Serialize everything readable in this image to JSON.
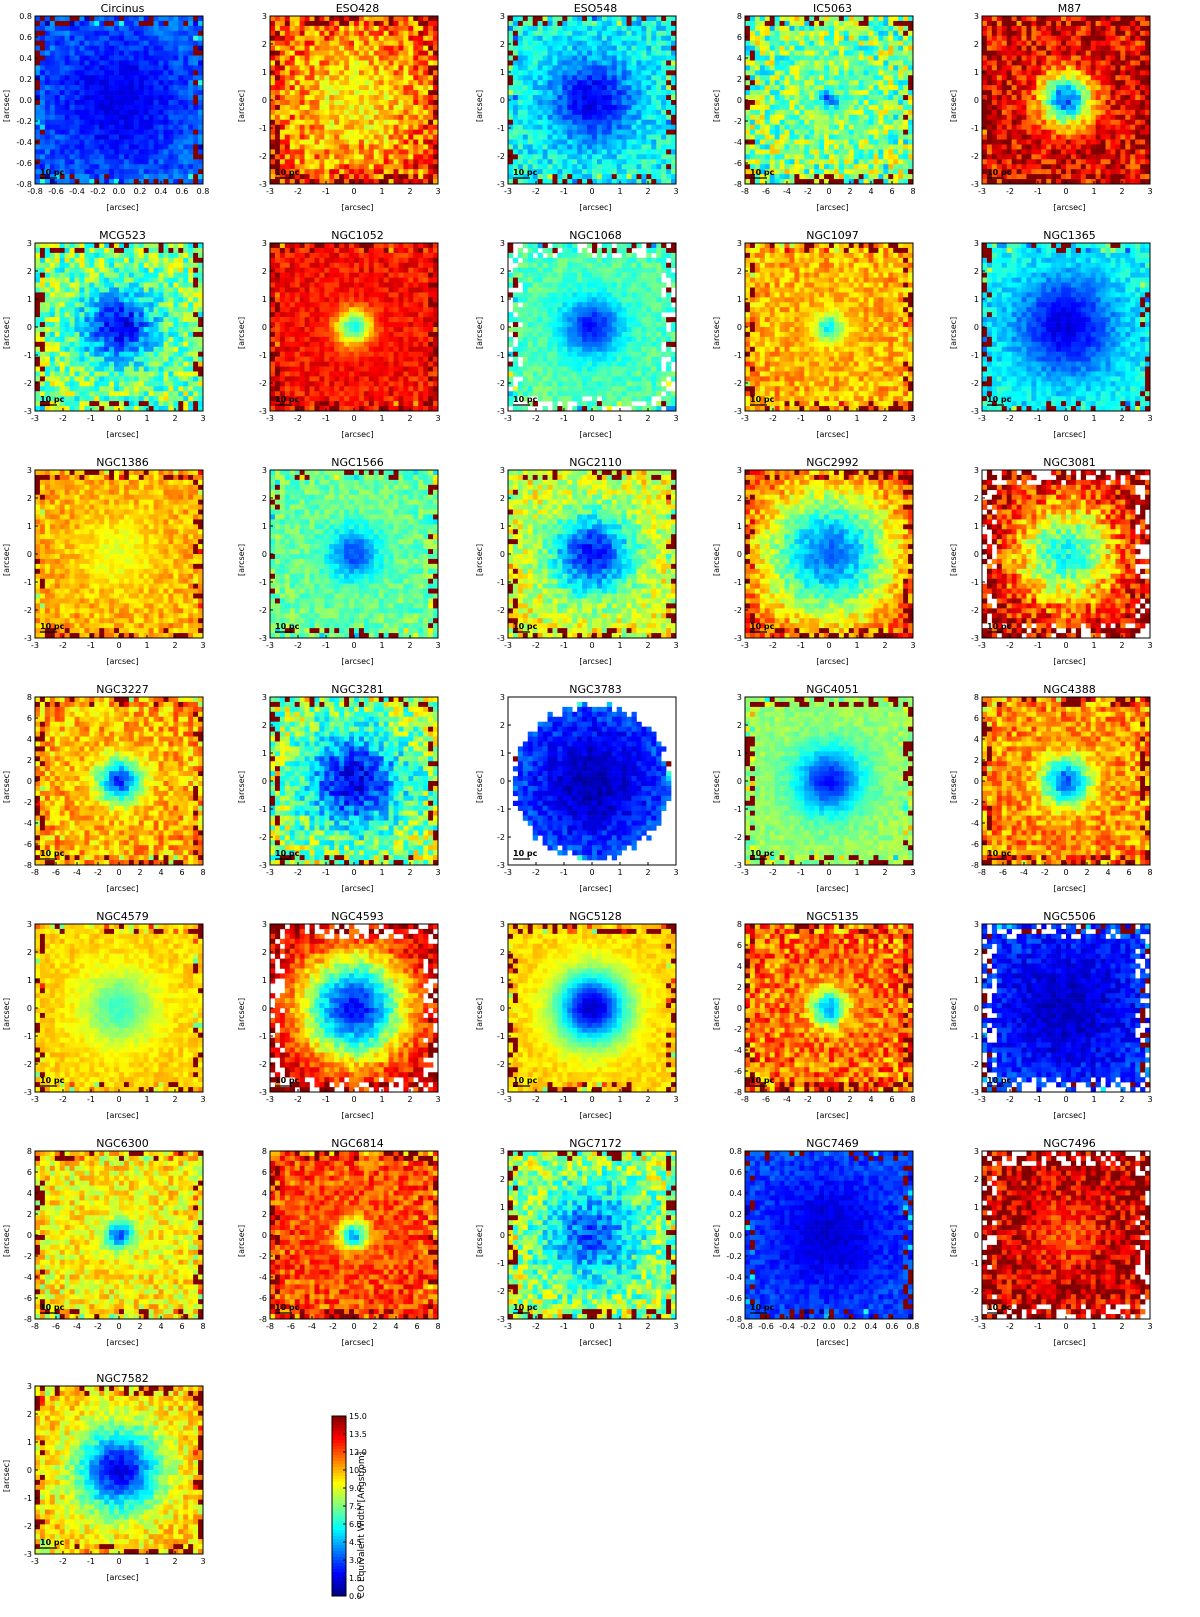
{
  "chart_data": {
    "type": "heatmap",
    "description_colormap": "jet",
    "colorbar": {
      "label": "CO Equivalent Width [Angstrom]",
      "ticks": [
        "15.0",
        "13.5",
        "12.0",
        "10.5",
        "9.0",
        "7.5",
        "6.0",
        "4.5",
        "3.0",
        "1.5",
        "0.0"
      ],
      "vmin": 0.0,
      "vmax": 15.0
    },
    "axis_unit_label": "[arcsec]",
    "scalebar_label": "10 pc",
    "panels": [
      {
        "name": "Circinus",
        "range": 0.8,
        "bg": 3.5,
        "center": 1.5,
        "radius": 0.55,
        "noise": 1.0,
        "mask": "none",
        "xticks": [
          "-0.8",
          "-0.6",
          "-0.4",
          "-0.2",
          "0.0",
          "0.2",
          "0.4",
          "0.6",
          "0.8"
        ],
        "yticks": [
          "0.8",
          "0.6",
          "0.4",
          "0.2",
          "0.0",
          "-0.2",
          "-0.4",
          "-0.6",
          "-0.8"
        ]
      },
      {
        "name": "ESO428",
        "range": 3,
        "bg": 12.5,
        "center": 9.5,
        "radius": 0.6,
        "noise": 2.5,
        "mask": "square",
        "xticks": [
          "-3",
          "-2",
          "-1",
          "0",
          "1",
          "2",
          "3"
        ],
        "yticks": [
          "3",
          "2",
          "1",
          "0",
          "-1",
          "-2",
          "-3"
        ]
      },
      {
        "name": "ESO548",
        "range": 3,
        "bg": 5.8,
        "center": 1.5,
        "radius": 0.35,
        "noise": 1.5,
        "mask": "square",
        "xticks": [
          "-3",
          "-2",
          "-1",
          "0",
          "1",
          "2",
          "3"
        ],
        "yticks": [
          "3",
          "2",
          "1",
          "0",
          "-1",
          "-2",
          "-3"
        ]
      },
      {
        "name": "IC5063",
        "range": 8,
        "bg": 7.5,
        "center": 3.0,
        "radius": 0.08,
        "noise": 3.0,
        "mask": "square",
        "xticks": [
          "-8",
          "-6",
          "-4",
          "-2",
          "0",
          "2",
          "4",
          "6",
          "8"
        ],
        "yticks": [
          "8",
          "6",
          "4",
          "2",
          "0",
          "-2",
          "-4",
          "-6",
          "-8"
        ]
      },
      {
        "name": "M87",
        "range": 3,
        "bg": 13.5,
        "center": 3.0,
        "radius": 0.22,
        "noise": 2.5,
        "mask": "square",
        "xticks": [
          "-3",
          "-2",
          "-1",
          "0",
          "1",
          "2",
          "3"
        ],
        "yticks": [
          "3",
          "2",
          "1",
          "0",
          "-1",
          "-2",
          "-3"
        ]
      },
      {
        "name": "MCG523",
        "range": 3,
        "bg": 7.5,
        "center": 1.5,
        "radius": 0.3,
        "noise": 2.5,
        "mask": "square",
        "xticks": [
          "-3",
          "-2",
          "-1",
          "0",
          "1",
          "2",
          "3"
        ],
        "yticks": [
          "3",
          "2",
          "1",
          "0",
          "-1",
          "-2",
          "-3"
        ]
      },
      {
        "name": "NGC1052",
        "range": 3,
        "bg": 13.0,
        "center": 6.0,
        "radius": 0.15,
        "noise": 1.2,
        "mask": "square",
        "xticks": [
          "-3",
          "-2",
          "-1",
          "0",
          "1",
          "2",
          "3"
        ],
        "yticks": [
          "3",
          "2",
          "1",
          "0",
          "-1",
          "-2",
          "-3"
        ]
      },
      {
        "name": "NGC1068",
        "range": 3,
        "bg": 6.8,
        "center": 2.0,
        "radius": 0.25,
        "noise": 1.0,
        "mask": "ragged",
        "xticks": [
          "-3",
          "-2",
          "-1",
          "0",
          "1",
          "2",
          "3"
        ],
        "yticks": [
          "3",
          "2",
          "1",
          "0",
          "-1",
          "-2",
          "-3"
        ]
      },
      {
        "name": "NGC1097",
        "range": 3,
        "bg": 10.5,
        "center": 5.5,
        "radius": 0.12,
        "noise": 1.5,
        "mask": "square",
        "xticks": [
          "-3",
          "-2",
          "-1",
          "0",
          "1",
          "2",
          "3"
        ],
        "yticks": [
          "3",
          "2",
          "1",
          "0",
          "-1",
          "-2",
          "-3"
        ]
      },
      {
        "name": "NGC1365",
        "range": 3,
        "bg": 6.0,
        "center": 1.5,
        "radius": 0.45,
        "noise": 1.0,
        "mask": "square",
        "xticks": [
          "-3",
          "-2",
          "-1",
          "0",
          "1",
          "2",
          "3"
        ],
        "yticks": [
          "3",
          "2",
          "1",
          "0",
          "-1",
          "-2",
          "-3"
        ]
      },
      {
        "name": "NGC1386",
        "range": 3,
        "bg": 10.5,
        "center": 9.0,
        "radius": 0.3,
        "noise": 1.2,
        "mask": "square",
        "xticks": [
          "-3",
          "-2",
          "-1",
          "0",
          "1",
          "2",
          "3"
        ],
        "yticks": [
          "3",
          "2",
          "1",
          "0",
          "-1",
          "-2",
          "-3"
        ]
      },
      {
        "name": "NGC1566",
        "range": 3,
        "bg": 7.2,
        "center": 3.0,
        "radius": 0.22,
        "noise": 1.2,
        "mask": "square",
        "xticks": [
          "-3",
          "-2",
          "-1",
          "0",
          "1",
          "2",
          "3"
        ],
        "yticks": [
          "3",
          "2",
          "1",
          "0",
          "-1",
          "-2",
          "-3"
        ]
      },
      {
        "name": "NGC2110",
        "range": 3,
        "bg": 9.0,
        "center": 2.0,
        "radius": 0.35,
        "noise": 1.8,
        "mask": "square",
        "xticks": [
          "-3",
          "-2",
          "-1",
          "0",
          "1",
          "2",
          "3"
        ],
        "yticks": [
          "3",
          "2",
          "1",
          "0",
          "-1",
          "-2",
          "-3"
        ]
      },
      {
        "name": "NGC2992",
        "range": 3,
        "bg": 12.5,
        "center": 3.5,
        "radius": 0.55,
        "noise": 1.5,
        "mask": "square",
        "xticks": [
          "-3",
          "-2",
          "-1",
          "0",
          "1",
          "2",
          "3"
        ],
        "yticks": [
          "3",
          "2",
          "1",
          "0",
          "-1",
          "-2",
          "-3"
        ]
      },
      {
        "name": "NGC3081",
        "range": 3,
        "bg": 14.0,
        "center": 6.0,
        "radius": 0.45,
        "noise": 2.5,
        "mask": "ragged",
        "xticks": [
          "-3",
          "-2",
          "-1",
          "0",
          "1",
          "2",
          "3"
        ],
        "yticks": [
          "3",
          "2",
          "1",
          "0",
          "-1",
          "-2",
          "-3"
        ]
      },
      {
        "name": "NGC3227",
        "range": 8,
        "bg": 10.5,
        "center": 2.5,
        "radius": 0.18,
        "noise": 1.8,
        "mask": "square",
        "xticks": [
          "-8",
          "-6",
          "-4",
          "-2",
          "0",
          "2",
          "4",
          "6",
          "8"
        ],
        "yticks": [
          "8",
          "6",
          "4",
          "2",
          "0",
          "-2",
          "-4",
          "-6",
          "-8"
        ]
      },
      {
        "name": "NGC3281",
        "range": 3,
        "bg": 8.0,
        "center": 1.5,
        "radius": 0.4,
        "noise": 2.5,
        "mask": "square",
        "xticks": [
          "-3",
          "-2",
          "-1",
          "0",
          "1",
          "2",
          "3"
        ],
        "yticks": [
          "3",
          "2",
          "1",
          "0",
          "-1",
          "-2",
          "-3"
        ]
      },
      {
        "name": "NGC3783",
        "range": 3,
        "bg": 4.0,
        "center": 0.8,
        "radius": 0.6,
        "noise": 1.2,
        "mask": "round",
        "xticks": [
          "-3",
          "-2",
          "-1",
          "0",
          "1",
          "2",
          "3"
        ],
        "yticks": [
          "3",
          "2",
          "1",
          "0",
          "-1",
          "-2",
          "-3"
        ]
      },
      {
        "name": "NGC4051",
        "range": 3,
        "bg": 7.8,
        "center": 2.0,
        "radius": 0.28,
        "noise": 0.8,
        "mask": "square",
        "xticks": [
          "-3",
          "-2",
          "-1",
          "0",
          "1",
          "2",
          "3"
        ],
        "yticks": [
          "3",
          "2",
          "1",
          "0",
          "-1",
          "-2",
          "-3"
        ]
      },
      {
        "name": "NGC4388",
        "range": 8,
        "bg": 11.0,
        "center": 3.0,
        "radius": 0.2,
        "noise": 1.8,
        "mask": "square",
        "xticks": [
          "-8",
          "-6",
          "-4",
          "-2",
          "0",
          "2",
          "4",
          "6",
          "8"
        ],
        "yticks": [
          "8",
          "6",
          "4",
          "2",
          "0",
          "-2",
          "-4",
          "-6",
          "-8"
        ]
      },
      {
        "name": "NGC4579",
        "range": 3,
        "bg": 10.0,
        "center": 6.5,
        "radius": 0.3,
        "noise": 0.7,
        "mask": "square",
        "xticks": [
          "-3",
          "-2",
          "-1",
          "0",
          "1",
          "2",
          "3"
        ],
        "yticks": [
          "3",
          "2",
          "1",
          "0",
          "-1",
          "-2",
          "-3"
        ]
      },
      {
        "name": "NGC4593",
        "range": 3,
        "bg": 14.0,
        "center": 2.0,
        "radius": 0.45,
        "noise": 1.5,
        "mask": "ragged",
        "xticks": [
          "-3",
          "-2",
          "-1",
          "0",
          "1",
          "2",
          "3"
        ],
        "yticks": [
          "3",
          "2",
          "1",
          "0",
          "-1",
          "-2",
          "-3"
        ]
      },
      {
        "name": "NGC5128",
        "range": 3,
        "bg": 10.0,
        "center": 1.0,
        "radius": 0.3,
        "noise": 0.6,
        "mask": "square",
        "xticks": [
          "-3",
          "-2",
          "-1",
          "0",
          "1",
          "2",
          "3"
        ],
        "yticks": [
          "3",
          "2",
          "1",
          "0",
          "-1",
          "-2",
          "-3"
        ]
      },
      {
        "name": "NGC5135",
        "range": 8,
        "bg": 11.5,
        "center": 4.0,
        "radius": 0.15,
        "noise": 2.2,
        "mask": "square",
        "xticks": [
          "-8",
          "-6",
          "-4",
          "-2",
          "0",
          "2",
          "4",
          "6",
          "8"
        ],
        "yticks": [
          "8",
          "6",
          "4",
          "2",
          "0",
          "-2",
          "-4",
          "-6",
          "-8"
        ]
      },
      {
        "name": "NGC5506",
        "range": 3,
        "bg": 3.0,
        "center": 1.0,
        "radius": 0.6,
        "noise": 1.2,
        "mask": "ragged",
        "xticks": [
          "-3",
          "-2",
          "-1",
          "0",
          "1",
          "2",
          "3"
        ],
        "yticks": [
          "3",
          "2",
          "1",
          "0",
          "-1",
          "-2",
          "-3"
        ]
      },
      {
        "name": "NGC6300",
        "range": 8,
        "bg": 9.5,
        "center": 3.0,
        "radius": 0.12,
        "noise": 1.8,
        "mask": "square",
        "xticks": [
          "-8",
          "-6",
          "-4",
          "-2",
          "0",
          "2",
          "4",
          "6",
          "8"
        ],
        "yticks": [
          "8",
          "6",
          "4",
          "2",
          "0",
          "-2",
          "-4",
          "-6",
          "-8"
        ]
      },
      {
        "name": "NGC6814",
        "range": 8,
        "bg": 12.0,
        "center": 4.5,
        "radius": 0.12,
        "noise": 1.8,
        "mask": "square",
        "xticks": [
          "-8",
          "-6",
          "-4",
          "-2",
          "0",
          "2",
          "4",
          "6",
          "8"
        ],
        "yticks": [
          "8",
          "6",
          "4",
          "2",
          "0",
          "-2",
          "-4",
          "-6",
          "-8"
        ]
      },
      {
        "name": "NGC7172",
        "range": 3,
        "bg": 8.0,
        "center": 3.0,
        "radius": 0.4,
        "noise": 2.5,
        "mask": "square",
        "xticks": [
          "-3",
          "-2",
          "-1",
          "0",
          "1",
          "2",
          "3"
        ],
        "yticks": [
          "3",
          "2",
          "1",
          "0",
          "-1",
          "-2",
          "-3"
        ]
      },
      {
        "name": "NGC7469",
        "range": 0.8,
        "bg": 3.0,
        "center": 1.2,
        "radius": 0.5,
        "noise": 0.8,
        "mask": "square",
        "xticks": [
          "-0.8",
          "-0.6",
          "-0.4",
          "-0.2",
          "0.0",
          "0.2",
          "0.4",
          "0.6",
          "0.8"
        ],
        "yticks": [
          "0.8",
          "0.6",
          "0.4",
          "0.2",
          "0.0",
          "-0.2",
          "-0.4",
          "-0.6",
          "-0.8"
        ]
      },
      {
        "name": "NGC7496",
        "range": 3,
        "bg": 14.0,
        "center": 12.0,
        "radius": 0.3,
        "noise": 2.5,
        "mask": "ragged",
        "xticks": [
          "-3",
          "-2",
          "-1",
          "0",
          "1",
          "2",
          "3"
        ],
        "yticks": [
          "3",
          "2",
          "1",
          "0",
          "-1",
          "-2",
          "-3"
        ]
      },
      {
        "name": "NGC7582",
        "range": 3,
        "bg": 10.0,
        "center": 1.5,
        "radius": 0.35,
        "noise": 1.5,
        "mask": "square",
        "xticks": [
          "-3",
          "-2",
          "-1",
          "0",
          "1",
          "2",
          "3"
        ],
        "yticks": [
          "3",
          "2",
          "1",
          "0",
          "-1",
          "-2",
          "-3"
        ]
      }
    ]
  }
}
